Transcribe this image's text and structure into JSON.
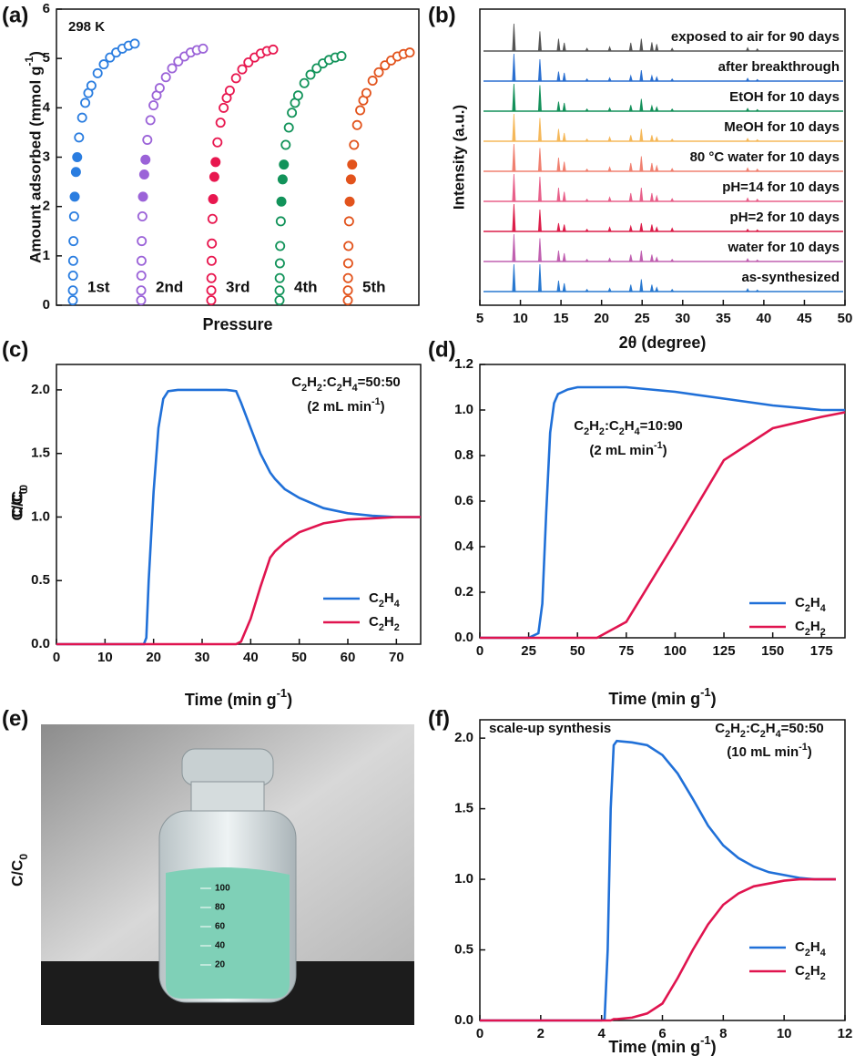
{
  "chart_data": [
    {
      "type": "scatter",
      "panel": "(a)",
      "xlabel": "Pressure",
      "ylabel": "Amount adsorbed (mmol g-1)",
      "annotations": [
        "298 K"
      ],
      "ylim": [
        0,
        6
      ],
      "yticks": [
        0,
        1,
        2,
        3,
        4,
        5,
        6
      ],
      "x": [
        0,
        0.001,
        0.003,
        0.006,
        0.01,
        0.02,
        0.03,
        0.05,
        0.07,
        0.1,
        0.15,
        0.2,
        0.25,
        0.3,
        0.4,
        0.5,
        0.6,
        0.7,
        0.8,
        0.9,
        1.0
      ],
      "series": [
        {
          "name": "1st",
          "color": "#2a7de0",
          "values": [
            0.1,
            0.3,
            0.6,
            0.9,
            1.3,
            1.8,
            2.2,
            2.7,
            3.0,
            3.4,
            3.8,
            4.1,
            4.3,
            4.45,
            4.7,
            4.88,
            5.02,
            5.12,
            5.2,
            5.26,
            5.3
          ]
        },
        {
          "name": "2nd",
          "color": "#9b63d8",
          "values": [
            0.1,
            0.3,
            0.6,
            0.9,
            1.3,
            1.8,
            2.2,
            2.65,
            2.95,
            3.35,
            3.75,
            4.05,
            4.25,
            4.4,
            4.62,
            4.8,
            4.94,
            5.04,
            5.12,
            5.17,
            5.2
          ]
        },
        {
          "name": "3rd",
          "color": "#e8174f",
          "values": [
            0.1,
            0.3,
            0.55,
            0.9,
            1.25,
            1.75,
            2.15,
            2.6,
            2.9,
            3.3,
            3.7,
            4.0,
            4.2,
            4.35,
            4.6,
            4.78,
            4.92,
            5.02,
            5.1,
            5.15,
            5.18
          ]
        },
        {
          "name": "4th",
          "color": "#12935a",
          "values": [
            0.1,
            0.3,
            0.55,
            0.85,
            1.2,
            1.7,
            2.1,
            2.55,
            2.85,
            3.25,
            3.6,
            3.9,
            4.1,
            4.25,
            4.5,
            4.67,
            4.8,
            4.9,
            4.97,
            5.02,
            5.05
          ]
        },
        {
          "name": "5th",
          "color": "#e2531c",
          "values": [
            0.1,
            0.3,
            0.55,
            0.85,
            1.2,
            1.7,
            2.1,
            2.55,
            2.85,
            3.25,
            3.65,
            3.95,
            4.15,
            4.3,
            4.55,
            4.72,
            4.86,
            4.96,
            5.04,
            5.09,
            5.12
          ]
        }
      ]
    },
    {
      "type": "xrd",
      "panel": "(b)",
      "xlabel": "2θ (degree)",
      "ylabel": "Intensity (a.u.)",
      "xlim": [
        5,
        50
      ],
      "xticks": [
        5,
        10,
        15,
        20,
        25,
        30,
        35,
        40,
        45,
        50
      ],
      "peaks": [
        9.2,
        12.4,
        14.7,
        15.4,
        18.2,
        21.0,
        23.6,
        24.9,
        26.2,
        26.8,
        28.7,
        38.0,
        39.2
      ],
      "series": [
        {
          "name": "exposed to air for 90 days",
          "color": "#555555",
          "values": [
            1.0,
            0.72,
            0.45,
            0.3,
            0.1,
            0.15,
            0.3,
            0.45,
            0.32,
            0.25,
            0.1,
            0.12,
            0.08
          ]
        },
        {
          "name": "after breakthrough",
          "color": "#2a6fd0",
          "values": [
            1.0,
            0.8,
            0.35,
            0.3,
            0.08,
            0.12,
            0.2,
            0.4,
            0.2,
            0.15,
            0.08,
            0.1,
            0.06
          ]
        },
        {
          "name": "EtOH for 10 days",
          "color": "#14905a",
          "values": [
            1.0,
            0.95,
            0.35,
            0.3,
            0.08,
            0.12,
            0.22,
            0.45,
            0.2,
            0.15,
            0.08,
            0.1,
            0.06
          ]
        },
        {
          "name": "MeOH for 10 days",
          "color": "#f5b85a",
          "values": [
            1.0,
            0.85,
            0.45,
            0.3,
            0.08,
            0.15,
            0.22,
            0.45,
            0.22,
            0.15,
            0.08,
            0.1,
            0.06
          ]
        },
        {
          "name": "80 °C water for 10 days",
          "color": "#f08070",
          "values": [
            1.0,
            0.85,
            0.5,
            0.35,
            0.08,
            0.15,
            0.3,
            0.55,
            0.3,
            0.2,
            0.1,
            0.12,
            0.08
          ]
        },
        {
          "name": "pH=14 for 10 days",
          "color": "#e8608a",
          "values": [
            1.0,
            0.9,
            0.5,
            0.35,
            0.08,
            0.15,
            0.3,
            0.5,
            0.3,
            0.2,
            0.1,
            0.12,
            0.08
          ]
        },
        {
          "name": "pH=2 for 10 days",
          "color": "#dc1e4a",
          "values": [
            1.0,
            0.8,
            0.3,
            0.25,
            0.08,
            0.15,
            0.2,
            0.3,
            0.25,
            0.15,
            0.12,
            0.08,
            0.06
          ]
        },
        {
          "name": "water for 10 days",
          "color": "#c060b0",
          "values": [
            1.0,
            0.85,
            0.4,
            0.3,
            0.08,
            0.12,
            0.25,
            0.4,
            0.25,
            0.15,
            0.08,
            0.1,
            0.06
          ]
        },
        {
          "name": "as-synthesized",
          "color": "#2878d0",
          "values": [
            1.0,
            1.0,
            0.4,
            0.3,
            0.08,
            0.12,
            0.25,
            0.45,
            0.25,
            0.15,
            0.08,
            0.1,
            0.06
          ]
        }
      ]
    },
    {
      "type": "line",
      "panel": "(c)",
      "xlabel": "Time (min g-1)",
      "ylabel": "C/C0",
      "annotations": [
        "C2H2:C2H4=50:50",
        "(2 mL min-1)"
      ],
      "legend": "lower right",
      "xlim": [
        0,
        75
      ],
      "xticks": [
        0,
        10,
        20,
        30,
        40,
        50,
        60,
        70
      ],
      "ylim": [
        0,
        2.2
      ],
      "yticks": [
        {
          "value": 0,
          "label": "0.0"
        },
        0.5,
        {
          "value": 1,
          "label": "1.0"
        },
        1.5,
        {
          "value": 2,
          "label": "2.0"
        }
      ],
      "x": [
        0,
        5,
        10,
        15,
        18,
        18.5,
        19,
        20,
        21,
        22,
        23,
        25,
        30,
        35,
        37,
        38,
        40,
        42,
        44,
        45,
        47,
        50,
        55,
        60,
        65,
        70,
        75
      ],
      "series": [
        {
          "name": "C2H4",
          "color": "#2070d8",
          "values": [
            0,
            0,
            0,
            0,
            0,
            0.05,
            0.5,
            1.2,
            1.7,
            1.93,
            1.99,
            2.0,
            2.0,
            2.0,
            1.99,
            1.9,
            1.7,
            1.5,
            1.35,
            1.3,
            1.22,
            1.15,
            1.07,
            1.03,
            1.01,
            1.0,
            1.0
          ]
        },
        {
          "name": "C2H2",
          "color": "#e0144f",
          "values": [
            0,
            0,
            0,
            0,
            0,
            0,
            0,
            0,
            0,
            0,
            0,
            0,
            0,
            0,
            0,
            0.02,
            0.2,
            0.45,
            0.68,
            0.73,
            0.8,
            0.88,
            0.95,
            0.98,
            0.99,
            1.0,
            1.0
          ]
        }
      ]
    },
    {
      "type": "line",
      "panel": "(d)",
      "xlabel": "Time (min g-1)",
      "ylabel": "C/C0",
      "annotations": [
        "C2H2:C2H4=10:90",
        "(2 mL min-1)"
      ],
      "legend": "lower right",
      "xlim": [
        0,
        187
      ],
      "xticks": [
        0,
        25,
        50,
        75,
        100,
        125,
        150,
        175
      ],
      "ylim": [
        0,
        1.2
      ],
      "yticks": [
        {
          "value": 0,
          "label": "0.0"
        },
        0.2,
        0.4,
        0.6,
        0.8,
        {
          "value": 1,
          "label": "1.0"
        },
        1.2
      ],
      "x": [
        0,
        25,
        30,
        32,
        34,
        36,
        38,
        40,
        45,
        50,
        60,
        75,
        100,
        125,
        150,
        175,
        187
      ],
      "series": [
        {
          "name": "C2H4",
          "color": "#2070d8",
          "values": [
            0,
            0,
            0.02,
            0.15,
            0.55,
            0.9,
            1.03,
            1.07,
            1.09,
            1.1,
            1.1,
            1.1,
            1.08,
            1.05,
            1.02,
            1.0,
            1.0
          ]
        },
        {
          "name": "C2H2",
          "color": "#e0144f",
          "values": [
            0,
            0,
            0,
            0,
            0,
            0,
            0,
            0,
            0,
            0,
            0,
            0.07,
            0.42,
            0.78,
            0.92,
            0.97,
            0.99
          ]
        }
      ]
    },
    {
      "type": "photo",
      "panel": "(e)",
      "scale_labels": [
        100,
        80,
        60,
        40,
        20
      ]
    },
    {
      "type": "line",
      "panel": "(f)",
      "xlabel": "Time (min g-1)",
      "ylabel": "C/C0",
      "annotations": [
        "scale-up synthesis",
        "C2H2:C2H4=50:50",
        "(10 mL min-1)"
      ],
      "legend": "lower right",
      "xlim": [
        0,
        12
      ],
      "xticks": [
        0,
        2,
        4,
        6,
        8,
        10,
        12
      ],
      "ylim": [
        0,
        2.13
      ],
      "yticks": [
        {
          "value": 0,
          "label": "0.0"
        },
        0.5,
        {
          "value": 1,
          "label": "1.0"
        },
        1.5,
        {
          "value": 2,
          "label": "2.0"
        }
      ],
      "x": [
        0,
        2,
        4,
        4.1,
        4.2,
        4.3,
        4.4,
        4.5,
        5,
        5.5,
        6,
        6.5,
        7,
        7.5,
        8,
        8.5,
        9,
        9.5,
        10,
        10.5,
        11,
        11.7
      ],
      "series": [
        {
          "name": "C2H4",
          "color": "#2070d8",
          "values": [
            0,
            0,
            0,
            0.01,
            0.5,
            1.5,
            1.95,
            1.98,
            1.97,
            1.95,
            1.88,
            1.75,
            1.57,
            1.38,
            1.24,
            1.15,
            1.09,
            1.05,
            1.03,
            1.01,
            1.0,
            1.0
          ]
        },
        {
          "name": "C2H2",
          "color": "#e0144f",
          "values": [
            0,
            0,
            0,
            0,
            0,
            0,
            0.01,
            0.01,
            0.02,
            0.05,
            0.12,
            0.3,
            0.5,
            0.68,
            0.82,
            0.9,
            0.95,
            0.97,
            0.99,
            1.0,
            1.0,
            1.0
          ]
        }
      ]
    }
  ]
}
